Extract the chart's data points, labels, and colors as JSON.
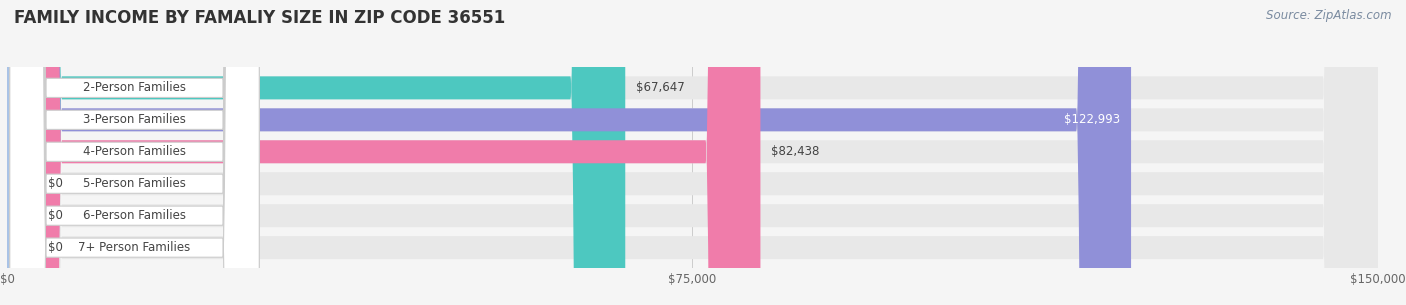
{
  "title": "FAMILY INCOME BY FAMALIY SIZE IN ZIP CODE 36551",
  "source": "Source: ZipAtlas.com",
  "categories": [
    "2-Person Families",
    "3-Person Families",
    "4-Person Families",
    "5-Person Families",
    "6-Person Families",
    "7+ Person Families"
  ],
  "values": [
    67647,
    122993,
    82438,
    0,
    0,
    0
  ],
  "bar_colors": [
    "#4dc8c0",
    "#9090d8",
    "#f07caa",
    "#f9c98a",
    "#f0908a",
    "#a8c4e8"
  ],
  "label_colors": [
    "#333333",
    "#ffffff",
    "#333333",
    "#333333",
    "#333333",
    "#333333"
  ],
  "bg_color": "#f5f5f5",
  "bar_bg_color": "#e8e8e8",
  "xlim": [
    0,
    150000
  ],
  "xtick_labels": [
    "$0",
    "$75,000",
    "$150,000"
  ],
  "title_fontsize": 12,
  "label_fontsize": 8.5,
  "value_fontsize": 8.5,
  "source_fontsize": 8.5
}
